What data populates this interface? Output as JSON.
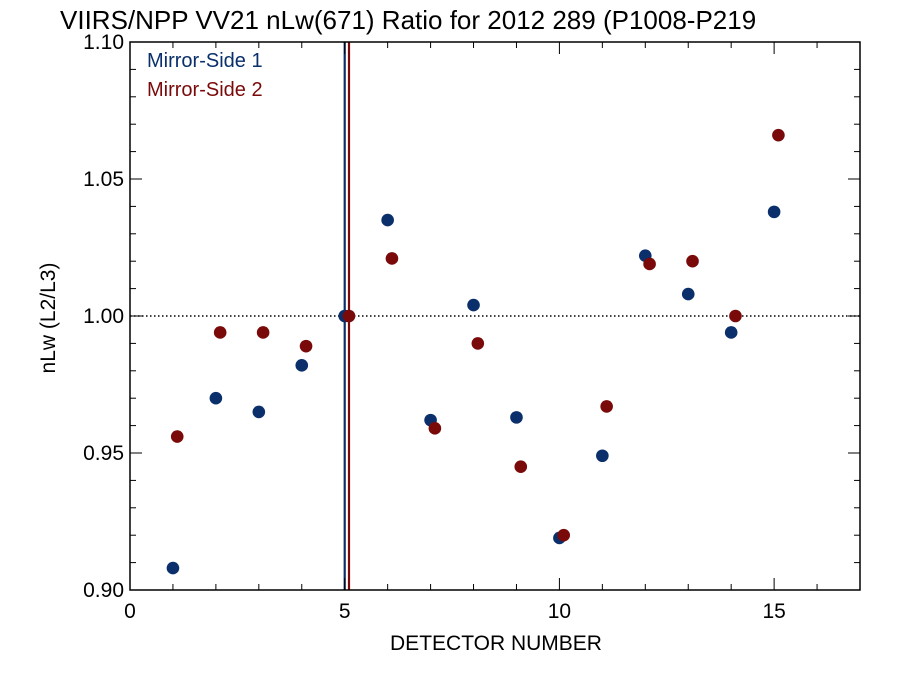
{
  "chart_data": {
    "type": "scatter",
    "title": "VIIRS/NPP VV21 nLw(671) Ratio for 2012 289 (P1008-P219",
    "xlabel": "DETECTOR NUMBER",
    "ylabel": "nLw (L2/L3)",
    "xlim": [
      0,
      17
    ],
    "ylim": [
      0.9,
      1.1
    ],
    "x_ticks": [
      0,
      5,
      10,
      15
    ],
    "x_tick_labels": [
      "0",
      "5",
      "10",
      "15"
    ],
    "y_ticks": [
      0.9,
      0.95,
      1.0,
      1.05,
      1.1
    ],
    "y_tick_labels": [
      "0.90",
      "0.95",
      "1.00",
      "1.05",
      "1.10"
    ],
    "reference_line_y": 1.0,
    "legend_position": "top-left",
    "series": [
      {
        "name": "Mirror-Side 1",
        "color": "#0a2f6b",
        "x": [
          1,
          2,
          3,
          4,
          5,
          6,
          7,
          8,
          9,
          10,
          11,
          12,
          13,
          14,
          15
        ],
        "y": [
          0.908,
          0.97,
          0.965,
          0.982,
          1.0,
          1.035,
          0.962,
          1.004,
          0.963,
          0.919,
          0.949,
          1.022,
          1.008,
          0.994,
          1.038
        ]
      },
      {
        "name": "Mirror-Side 2",
        "color": "#7a0a0a",
        "x": [
          1.1,
          2.1,
          3.1,
          4.1,
          5.1,
          6.1,
          7.1,
          8.1,
          9.1,
          10.1,
          11.1,
          12.1,
          13.1,
          14.1,
          15.1
        ],
        "y": [
          0.956,
          0.994,
          0.994,
          0.989,
          1.0,
          1.021,
          0.959,
          0.99,
          0.945,
          0.92,
          0.967,
          1.019,
          1.02,
          1.0,
          1.066
        ]
      }
    ],
    "vertical_lines": [
      {
        "series": "Mirror-Side 1",
        "x": 5.0,
        "color": "#0a2f6b"
      },
      {
        "series": "Mirror-Side 2",
        "x": 5.1,
        "color": "#7a0a0a"
      }
    ]
  }
}
